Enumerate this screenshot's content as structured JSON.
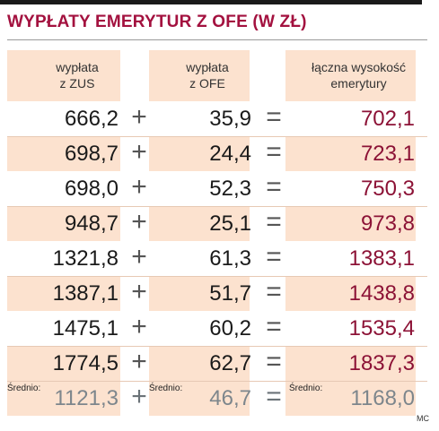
{
  "title": "WYPŁATY EMERYTUR Z OFE (W ZŁ)",
  "headers": {
    "zus": [
      "wypłata",
      "z ZUS"
    ],
    "ofe": [
      "wypłata",
      "z OFE"
    ],
    "total": [
      "łączna wysokość",
      "emerytury"
    ]
  },
  "operators": {
    "plus": "+",
    "equals": "="
  },
  "rows": [
    {
      "zus": "666,2",
      "ofe": "35,9",
      "total": "702,1"
    },
    {
      "zus": "698,7",
      "ofe": "24,4",
      "total": "723,1"
    },
    {
      "zus": "698,0",
      "ofe": "52,3",
      "total": "750,3"
    },
    {
      "zus": "948,7",
      "ofe": "25,1",
      "total": "973,8"
    },
    {
      "zus": "1321,8",
      "ofe": "61,3",
      "total": "1383,1"
    },
    {
      "zus": "1387,1",
      "ofe": "51,7",
      "total": "1438,8"
    },
    {
      "zus": "1475,1",
      "ofe": "60,2",
      "total": "1535,4"
    },
    {
      "zus": "1774,5",
      "ofe": "62,7",
      "total": "1837,3"
    }
  ],
  "average": {
    "label": "Średnio:",
    "zus": "1121,3",
    "ofe": "46,7",
    "total": "1168,0"
  },
  "credit": "MC",
  "colors": {
    "title": "#a3113f",
    "shade": "#fce2cf",
    "total_values": "#8c1236",
    "average_values": "#7d868c"
  }
}
